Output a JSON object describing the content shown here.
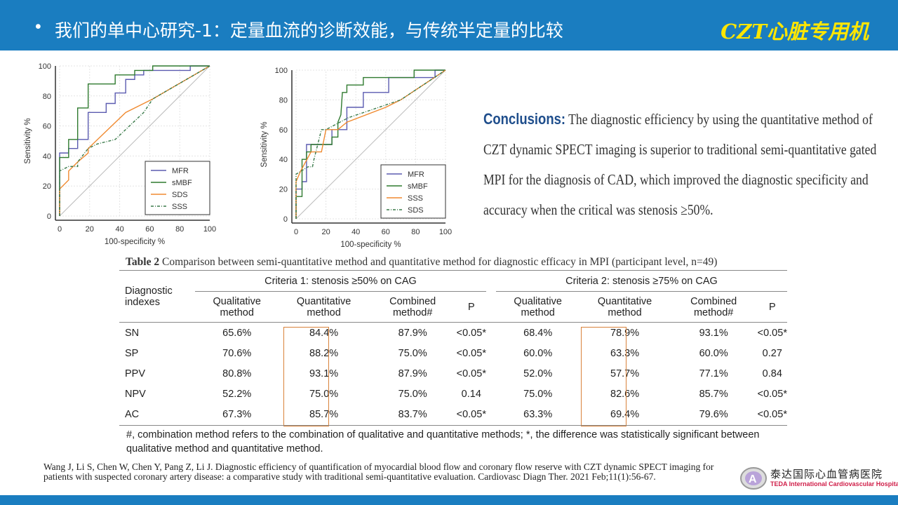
{
  "header": {
    "bullet": "•",
    "title": "我们的单中心研究-1：定量血流的诊断效能，与传统半定量的比较",
    "tag": "CZT心脏专用机"
  },
  "chart_data": [
    {
      "type": "line",
      "xlabel": "100-specificity %",
      "ylabel": "Sensitivity %",
      "xlim": [
        0,
        100
      ],
      "ylim": [
        0,
        100
      ],
      "xticks": [
        "0",
        "20",
        "40",
        "60",
        "80",
        "100"
      ],
      "yticks": [
        "0",
        "20",
        "40",
        "60",
        "80",
        "100"
      ],
      "legend_position": "bottom-right",
      "series": [
        {
          "name": "MFR",
          "color": "#5b5bb0",
          "dash": "",
          "points": [
            [
              0,
              0
            ],
            [
              0,
              42
            ],
            [
              6,
              42
            ],
            [
              6,
              45
            ],
            [
              12,
              45
            ],
            [
              12,
              51
            ],
            [
              19,
              51
            ],
            [
              19,
              69
            ],
            [
              31,
              69
            ],
            [
              31,
              75
            ],
            [
              37,
              75
            ],
            [
              37,
              82
            ],
            [
              44,
              82
            ],
            [
              44,
              91
            ],
            [
              50,
              91
            ],
            [
              50,
              94
            ],
            [
              56,
              94
            ],
            [
              56,
              97
            ],
            [
              87,
              97
            ],
            [
              87,
              100
            ],
            [
              100,
              100
            ]
          ]
        },
        {
          "name": "sMBF",
          "color": "#2f7a2f",
          "dash": "",
          "points": [
            [
              0,
              0
            ],
            [
              0,
              39
            ],
            [
              6,
              39
            ],
            [
              6,
              51
            ],
            [
              12,
              51
            ],
            [
              12,
              72
            ],
            [
              19,
              72
            ],
            [
              19,
              88
            ],
            [
              37,
              88
            ],
            [
              37,
              94
            ],
            [
              50,
              94
            ],
            [
              50,
              97
            ],
            [
              62,
              97
            ],
            [
              62,
              100
            ],
            [
              100,
              100
            ]
          ]
        },
        {
          "name": "SDS",
          "color": "#f08a30",
          "dash": "",
          "points": [
            [
              0,
              0
            ],
            [
              0,
              18
            ],
            [
              6,
              24
            ],
            [
              6,
              30
            ],
            [
              12,
              36
            ],
            [
              19,
              42
            ],
            [
              19,
              45
            ],
            [
              44,
              69
            ],
            [
              62,
              78
            ],
            [
              100,
              100
            ]
          ]
        },
        {
          "name": "SSS",
          "color": "#3a7a4a",
          "dash": "4,2,1,2",
          "points": [
            [
              0,
              0
            ],
            [
              0,
              30
            ],
            [
              6,
              33
            ],
            [
              12,
              33
            ],
            [
              12,
              36
            ],
            [
              19,
              45
            ],
            [
              25,
              48
            ],
            [
              37,
              51
            ],
            [
              56,
              69
            ],
            [
              62,
              78
            ],
            [
              100,
              100
            ]
          ]
        }
      ]
    },
    {
      "type": "line",
      "xlabel": "100-specificity %",
      "ylabel": "Sensitivity %",
      "xlim": [
        0,
        100
      ],
      "ylim": [
        0,
        100
      ],
      "xticks": [
        "0",
        "20",
        "40",
        "60",
        "80",
        "100"
      ],
      "yticks": [
        "0",
        "20",
        "40",
        "60",
        "80",
        "100"
      ],
      "legend_position": "bottom-right",
      "series": [
        {
          "name": "MFR",
          "color": "#5b5bb0",
          "dash": "",
          "points": [
            [
              0,
              0
            ],
            [
              0,
              20
            ],
            [
              4,
              20
            ],
            [
              4,
              25
            ],
            [
              7,
              25
            ],
            [
              7,
              50
            ],
            [
              24,
              50
            ],
            [
              24,
              60
            ],
            [
              34,
              60
            ],
            [
              34,
              75
            ],
            [
              45,
              75
            ],
            [
              45,
              85
            ],
            [
              62,
              85
            ],
            [
              62,
              95
            ],
            [
              93,
              95
            ],
            [
              93,
              100
            ],
            [
              100,
              100
            ]
          ]
        },
        {
          "name": "sMBF",
          "color": "#2f7a2f",
          "dash": "",
          "points": [
            [
              0,
              0
            ],
            [
              0,
              15
            ],
            [
              4,
              15
            ],
            [
              4,
              40
            ],
            [
              7,
              40
            ],
            [
              7,
              45
            ],
            [
              10,
              45
            ],
            [
              10,
              50
            ],
            [
              24,
              50
            ],
            [
              24,
              55
            ],
            [
              28,
              55
            ],
            [
              28,
              65
            ],
            [
              30,
              70
            ],
            [
              31,
              85
            ],
            [
              34,
              85
            ],
            [
              34,
              90
            ],
            [
              45,
              90
            ],
            [
              45,
              95
            ],
            [
              79,
              95
            ],
            [
              79,
              100
            ],
            [
              100,
              100
            ]
          ]
        },
        {
          "name": "SSS",
          "color": "#f08a30",
          "dash": "",
          "points": [
            [
              0,
              0
            ],
            [
              0,
              25
            ],
            [
              3,
              32
            ],
            [
              10,
              45
            ],
            [
              17,
              45
            ],
            [
              20,
              60
            ],
            [
              28,
              60
            ],
            [
              34,
              65
            ],
            [
              60,
              75
            ],
            [
              70,
              80
            ],
            [
              100,
              100
            ]
          ]
        },
        {
          "name": "SDS",
          "color": "#3a7a4a",
          "dash": "4,2,1,2",
          "points": [
            [
              0,
              0
            ],
            [
              0,
              30
            ],
            [
              8,
              35
            ],
            [
              11,
              35
            ],
            [
              12,
              40
            ],
            [
              17,
              60
            ],
            [
              20,
              60
            ],
            [
              35,
              68
            ],
            [
              70,
              80
            ],
            [
              100,
              100
            ]
          ]
        }
      ]
    }
  ],
  "conclusion": {
    "label": "Conclusions:",
    "text": " The diagnostic efficiency by using the quantitative method of CZT dynamic SPECT imaging is superior to traditional semi-quantitative gated MPI for the diagnosis of CAD, which improved the diagnostic specificity and accuracy when the critical was stenosis ≥50%."
  },
  "table": {
    "caption_bold": "Table 2",
    "caption": " Comparison between semi-quantitative method and quantitative method for diagnostic efficacy in MPI (participant level, n=49)",
    "row_header": "Diagnostic indexes",
    "group1": "Criteria 1: stenosis ≥50% on CAG",
    "group2": "Criteria 2: stenosis ≥75% on CAG",
    "cols": [
      "Qualitative method",
      "Quantitative method",
      "Combined method#",
      "P",
      "Qualitative method",
      "Quantitative method",
      "Combined method#",
      "P"
    ],
    "rows": [
      [
        "SN",
        "65.6%",
        "84.4%",
        "87.9%",
        "<0.05*",
        "68.4%",
        "78.9%",
        "93.1%",
        "<0.05*"
      ],
      [
        "SP",
        "70.6%",
        "88.2%",
        "75.0%",
        "<0.05*",
        "60.0%",
        "63.3%",
        "60.0%",
        "0.27"
      ],
      [
        "PPV",
        "80.8%",
        "93.1%",
        "87.9%",
        "<0.05*",
        "52.0%",
        "57.7%",
        "77.1%",
        "0.84"
      ],
      [
        "NPV",
        "52.2%",
        "75.0%",
        "75.0%",
        "0.14",
        "75.0%",
        "82.6%",
        "85.7%",
        "<0.05*"
      ],
      [
        "AC",
        "67.3%",
        "85.7%",
        "83.7%",
        "<0.05*",
        "63.3%",
        "69.4%",
        "79.6%",
        "<0.05*"
      ]
    ],
    "note": "#, combination method refers to the combination of qualitative and quantitative methods; *, the difference was statistically significant between qualitative method and quantitative method."
  },
  "reference": "Wang J, Li S, Chen W, Chen Y, Pang Z, Li J. Diagnostic efficiency of quantification of myocardial blood flow and coronary flow reserve with CZT dynamic SPECT imaging for patients with suspected coronary artery disease: a comparative study with traditional semi-quantitative evaluation. Cardiovasc Diagn Ther. 2021 Feb;11(1):56-67.",
  "logo": {
    "cn": "泰达国际心血管病医院",
    "en": "TEDA International Cardiovascular Hospital"
  },
  "colors": {
    "header": "#1a7dc0",
    "tag": "#ffe600",
    "highlight": "#d9823a"
  }
}
